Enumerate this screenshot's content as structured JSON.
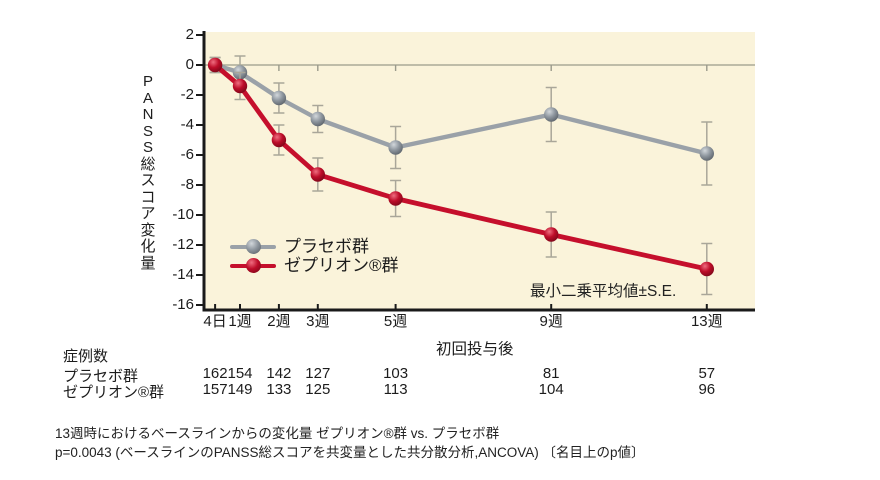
{
  "chart_data": {
    "type": "line",
    "title": "",
    "ylabel": "PANSS総スコア変化量",
    "xlabel": "初回投与後",
    "annotation": "最小二乗平均値±S.E.",
    "x_tick_labels": [
      "4日",
      "1週",
      "2週",
      "3週",
      "5週",
      "9週",
      "13週"
    ],
    "x_weeks": [
      0.36,
      1,
      2,
      3,
      5,
      9,
      13
    ],
    "y_ticks": [
      2,
      0,
      -2,
      -4,
      -6,
      -8,
      -10,
      -12,
      -14,
      -16
    ],
    "ylim": [
      -16,
      2
    ],
    "grid": false,
    "legend_position": "inside-lower-left",
    "series": [
      {
        "name": "プラセボ群",
        "color": "#9aa1a8",
        "ball_gradient": [
          "#d2d7db",
          "#8f979f",
          "#4f565d"
        ],
        "values": [
          0,
          -0.5,
          -2.2,
          -3.6,
          -5.5,
          -3.3,
          -5.9
        ],
        "se": [
          0.5,
          1.1,
          1.0,
          0.9,
          1.4,
          1.8,
          2.1
        ]
      },
      {
        "name": "ゼプリオン®群",
        "color": "#c50f2c",
        "ball_gradient": [
          "#ef6e80",
          "#bd0d29",
          "#6c0515"
        ],
        "values": [
          0,
          -1.4,
          -5.0,
          -7.3,
          -8.9,
          -11.3,
          -13.6
        ],
        "se": [
          0.5,
          0.9,
          1.0,
          1.1,
          1.2,
          1.5,
          1.7
        ]
      }
    ]
  },
  "cases_table": {
    "header": "症例数",
    "rows": [
      {
        "label": "プラセボ群",
        "values": [
          "162",
          "154",
          "142",
          "127",
          "103",
          "81",
          "57"
        ]
      },
      {
        "label": "ゼプリオン®群",
        "values": [
          "157",
          "149",
          "133",
          "125",
          "113",
          "104",
          "96"
        ]
      }
    ]
  },
  "footnotes": [
    "13週時におけるベースラインからの変化量 ゼプリオン®群 vs. プラセボ群",
    "p=0.0043 (ベースラインのPANSS総スコアを共変量とした共分散分析,ANCOVA) 〔名目上のp値〕"
  ],
  "colors": {
    "plot_bg": "#faf3da",
    "axis": "#1a1a1a",
    "error_bar": "#a9a699",
    "zero_line": "#9a9a8b",
    "text": "#1c1c1c"
  }
}
